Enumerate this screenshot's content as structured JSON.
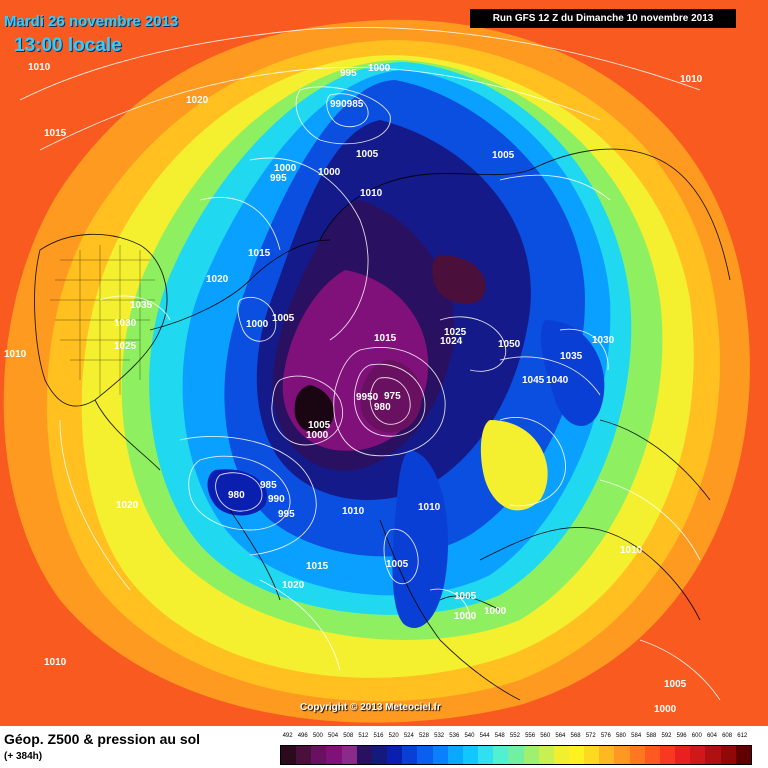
{
  "header": {
    "date": "Mardi 26 novembre 2013",
    "local_time": "13:00 locale",
    "run": "Run GFS 12 Z du Dimanche 10 novembre 2013"
  },
  "footer": {
    "copyright": "Copyright © 2013 Meteociel.fr",
    "legend_title": "Géop. Z500 & pression au sol",
    "legend_subtitle": "(+ 384h)"
  },
  "scale": {
    "labels": [
      "492",
      "496",
      "500",
      "504",
      "508",
      "512",
      "516",
      "520",
      "524",
      "528",
      "532",
      "536",
      "540",
      "544",
      "548",
      "552",
      "556",
      "560",
      "564",
      "568",
      "572",
      "576",
      "580",
      "584",
      "588",
      "592",
      "596",
      "600",
      "604",
      "608",
      "612"
    ],
    "colors": [
      "#2b0a1e",
      "#4a0f3a",
      "#6a1060",
      "#80107a",
      "#8a2a8a",
      "#2a1060",
      "#141a7a",
      "#0a1fb0",
      "#0a3fd6",
      "#0a5ff0",
      "#0a80ff",
      "#0aa8ff",
      "#10c8ff",
      "#30e0f0",
      "#50f0d0",
      "#70f0a0",
      "#a0f070",
      "#c8f050",
      "#f0f030",
      "#fff020",
      "#ffd820",
      "#ffb820",
      "#ff9820",
      "#ff7820",
      "#ff5820",
      "#f83820",
      "#e82020",
      "#d01818",
      "#b01010",
      "#900808",
      "#600000"
    ]
  },
  "isobars": [
    {
      "label": "1010"
    },
    {
      "label": "1020"
    },
    {
      "label": "1015"
    },
    {
      "label": "995"
    },
    {
      "label": "1000"
    },
    {
      "label": "990985"
    },
    {
      "label": "1000"
    },
    {
      "label": "995"
    },
    {
      "label": "1000"
    },
    {
      "label": "1005"
    },
    {
      "label": "1005"
    },
    {
      "label": "1010"
    },
    {
      "label": "1010"
    },
    {
      "label": "1015"
    },
    {
      "label": "1020"
    },
    {
      "label": "1035"
    },
    {
      "label": "1030"
    },
    {
      "label": "1025"
    },
    {
      "label": "1000"
    },
    {
      "label": "1005"
    },
    {
      "label": "1010"
    },
    {
      "label": "1015"
    },
    {
      "label": "1025"
    },
    {
      "label": "1024"
    },
    {
      "label": "1050"
    },
    {
      "label": "1035"
    },
    {
      "label": "1030"
    },
    {
      "label": "1045"
    },
    {
      "label": "1040"
    },
    {
      "label": "9950"
    },
    {
      "label": "975"
    },
    {
      "label": "980"
    },
    {
      "label": "1005"
    },
    {
      "label": "1000"
    },
    {
      "label": "980"
    },
    {
      "label": "985"
    },
    {
      "label": "990"
    },
    {
      "label": "995"
    },
    {
      "label": "1020"
    },
    {
      "label": "1010"
    },
    {
      "label": "1010"
    },
    {
      "label": "1010"
    },
    {
      "label": "1015"
    },
    {
      "label": "1005"
    },
    {
      "label": "1020"
    },
    {
      "label": "1005"
    },
    {
      "label": "1000"
    },
    {
      "label": "1000"
    },
    {
      "label": "1010"
    },
    {
      "label": "1005"
    },
    {
      "label": "1000"
    }
  ]
}
